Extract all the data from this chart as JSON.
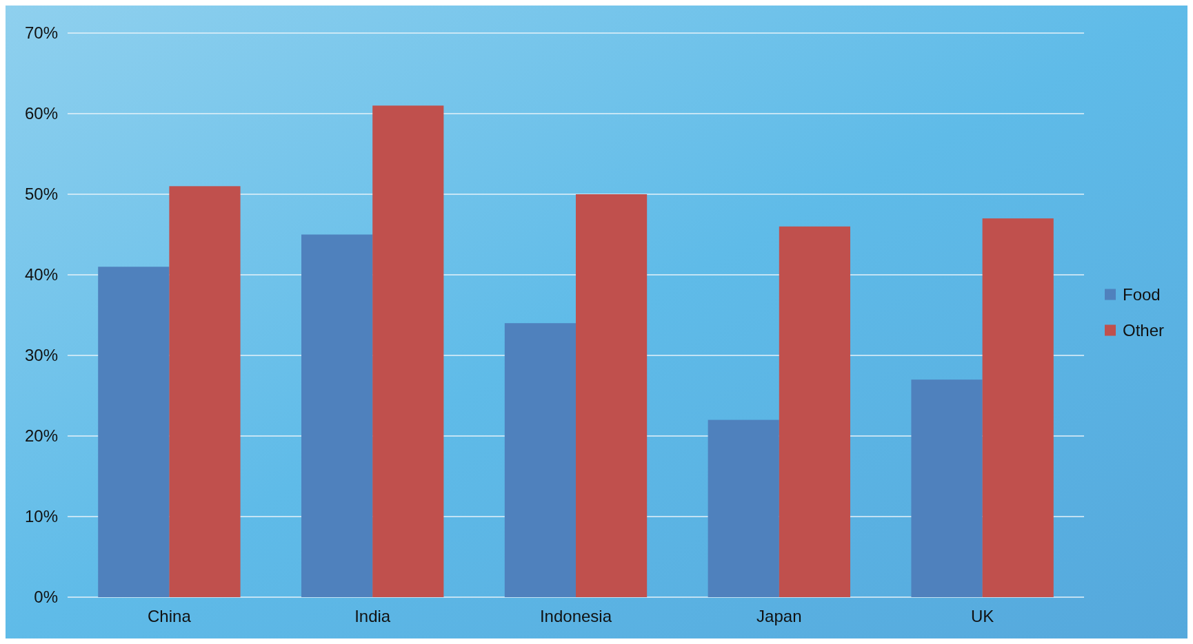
{
  "chart_data": {
    "type": "bar",
    "categories": [
      "China",
      "India",
      "Indonesia",
      "Japan",
      "UK"
    ],
    "series": [
      {
        "name": "Food",
        "color": "#4f81bd",
        "values": [
          41,
          45,
          34,
          22,
          27
        ]
      },
      {
        "name": "Other",
        "color": "#c0504d",
        "values": [
          51,
          61,
          50,
          46,
          47
        ]
      }
    ],
    "ylim": [
      0,
      70
    ],
    "yticks": [
      {
        "value": 0,
        "label": "0%"
      },
      {
        "value": 10,
        "label": "10%"
      },
      {
        "value": 20,
        "label": "20%"
      },
      {
        "value": 30,
        "label": "30%"
      },
      {
        "value": 40,
        "label": "40%"
      },
      {
        "value": 50,
        "label": "50%"
      },
      {
        "value": 60,
        "label": "60%"
      },
      {
        "value": 70,
        "label": "70%"
      }
    ],
    "grid": "y",
    "legend": "right"
  }
}
